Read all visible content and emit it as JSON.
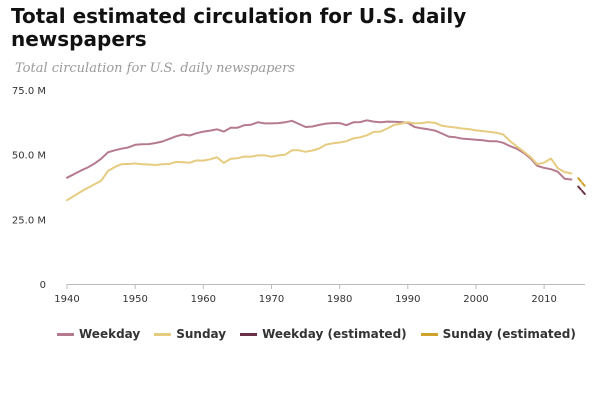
{
  "title": "Total estimated circulation for U.S. daily newspapers",
  "subtitle": "Total circulation for U.S. daily newspapers",
  "colors": {
    "weekday": "#b57b8d",
    "sunday": "#e6cc80",
    "weekday_estimated": "#6b2e48",
    "sunday_estimated": "#cfa22b",
    "axis": "#bbbbbb",
    "text": "#333333"
  },
  "legend": [
    {
      "key": "weekday",
      "label": "Weekday"
    },
    {
      "key": "sunday",
      "label": "Sunday"
    },
    {
      "key": "weekday_estimated",
      "label": "Weekday (estimated)"
    },
    {
      "key": "sunday_estimated",
      "label": "Sunday (estimated)"
    }
  ],
  "chart_data": {
    "type": "line",
    "xlim": [
      1940,
      2016
    ],
    "ylim": [
      0,
      75000000
    ],
    "y_ticks": [
      {
        "value": 0,
        "label": "0"
      },
      {
        "value": 25000000,
        "label": "25.0 M"
      },
      {
        "value": 50000000,
        "label": "50.0 M"
      },
      {
        "value": 75000000,
        "label": "75.0 M"
      }
    ],
    "x_ticks": [
      {
        "value": 1940,
        "label": "1940"
      },
      {
        "value": 1950,
        "label": "1950"
      },
      {
        "value": 1960,
        "label": "1960"
      },
      {
        "value": 1970,
        "label": "1970"
      },
      {
        "value": 1980,
        "label": "1980"
      },
      {
        "value": 1990,
        "label": "1990"
      },
      {
        "value": 2000,
        "label": "2000"
      },
      {
        "value": 2010,
        "label": "2010"
      }
    ],
    "grid": false,
    "legend_position": "bottom",
    "series": [
      {
        "key": "weekday",
        "name": "Weekday",
        "dashed": false,
        "x": [
          1940,
          1941,
          1942,
          1943,
          1944,
          1945,
          1946,
          1947,
          1948,
          1949,
          1950,
          1951,
          1952,
          1953,
          1954,
          1955,
          1956,
          1957,
          1958,
          1959,
          1960,
          1961,
          1962,
          1963,
          1964,
          1965,
          1966,
          1967,
          1968,
          1969,
          1970,
          1971,
          1972,
          1973,
          1974,
          1975,
          1976,
          1977,
          1978,
          1979,
          1980,
          1981,
          1982,
          1983,
          1984,
          1985,
          1986,
          1987,
          1988,
          1989,
          1990,
          1991,
          1992,
          1993,
          1994,
          1995,
          1996,
          1997,
          1998,
          1999,
          2000,
          2001,
          2002,
          2003,
          2004,
          2005,
          2006,
          2007,
          2008,
          2009,
          2010,
          2011,
          2012,
          2013,
          2014
        ],
        "values": [
          41100000,
          42400000,
          43800000,
          45000000,
          46500000,
          48400000,
          50900000,
          51700000,
          52300000,
          52800000,
          53800000,
          54000000,
          54100000,
          54500000,
          55100000,
          56100000,
          57100000,
          57800000,
          57400000,
          58300000,
          58900000,
          59300000,
          59800000,
          58900000,
          60400000,
          60400000,
          61400000,
          61600000,
          62500000,
          62100000,
          62100000,
          62200000,
          62500000,
          63100000,
          61900000,
          60700000,
          60900000,
          61500000,
          62000000,
          62200000,
          62200000,
          61400000,
          62500000,
          62600000,
          63300000,
          62800000,
          62500000,
          62800000,
          62700000,
          62600000,
          62300000,
          60700000,
          60200000,
          59800000,
          59300000,
          58200000,
          57000000,
          56700000,
          56200000,
          56000000,
          55800000,
          55600000,
          55200000,
          55200000,
          54600000,
          53300000,
          52300000,
          50700000,
          48600000,
          45700000,
          44900000,
          44400000,
          43400000,
          40700000,
          40400000
        ]
      },
      {
        "key": "sunday",
        "name": "Sunday",
        "dashed": false,
        "x": [
          1940,
          1941,
          1942,
          1943,
          1944,
          1945,
          1946,
          1947,
          1948,
          1949,
          1950,
          1951,
          1952,
          1953,
          1954,
          1955,
          1956,
          1957,
          1958,
          1959,
          1960,
          1961,
          1962,
          1963,
          1964,
          1965,
          1966,
          1967,
          1968,
          1969,
          1970,
          1971,
          1972,
          1973,
          1974,
          1975,
          1976,
          1977,
          1978,
          1979,
          1980,
          1981,
          1982,
          1983,
          1984,
          1985,
          1986,
          1987,
          1988,
          1989,
          1990,
          1991,
          1992,
          1993,
          1994,
          1995,
          1996,
          1997,
          1998,
          1999,
          2000,
          2001,
          2002,
          2003,
          2004,
          2005,
          2006,
          2007,
          2008,
          2009,
          2010,
          2011,
          2012,
          2013,
          2014
        ],
        "values": [
          32400000,
          34000000,
          35600000,
          37100000,
          38500000,
          39900000,
          43700000,
          45200000,
          46300000,
          46400000,
          46600000,
          46300000,
          46200000,
          46000000,
          46300000,
          46400000,
          47200000,
          47100000,
          46900000,
          47800000,
          47700000,
          48200000,
          49000000,
          46800000,
          48400000,
          48600000,
          49300000,
          49200000,
          49700000,
          49700000,
          49200000,
          49700000,
          50000000,
          51700000,
          51700000,
          51100000,
          51600000,
          52400000,
          53900000,
          54400000,
          54700000,
          55200000,
          56300000,
          56700000,
          57500000,
          58800000,
          58900000,
          60100000,
          61500000,
          62000000,
          62600000,
          62100000,
          62200000,
          62600000,
          62300000,
          61200000,
          60800000,
          60500000,
          60100000,
          59900000,
          59400000,
          59100000,
          58800000,
          58500000,
          57800000,
          55300000,
          53200000,
          51200000,
          49100000,
          46300000,
          46900000,
          48500000,
          44800000,
          43300000,
          42700000
        ]
      },
      {
        "key": "weekday_estimated",
        "name": "Weekday (estimated)",
        "dashed": true,
        "x": [
          2015,
          2016
        ],
        "values": [
          37700000,
          34700000
        ]
      },
      {
        "key": "sunday_estimated",
        "name": "Sunday (estimated)",
        "dashed": true,
        "x": [
          2015,
          2016
        ],
        "values": [
          40900000,
          37800000
        ]
      }
    ]
  }
}
